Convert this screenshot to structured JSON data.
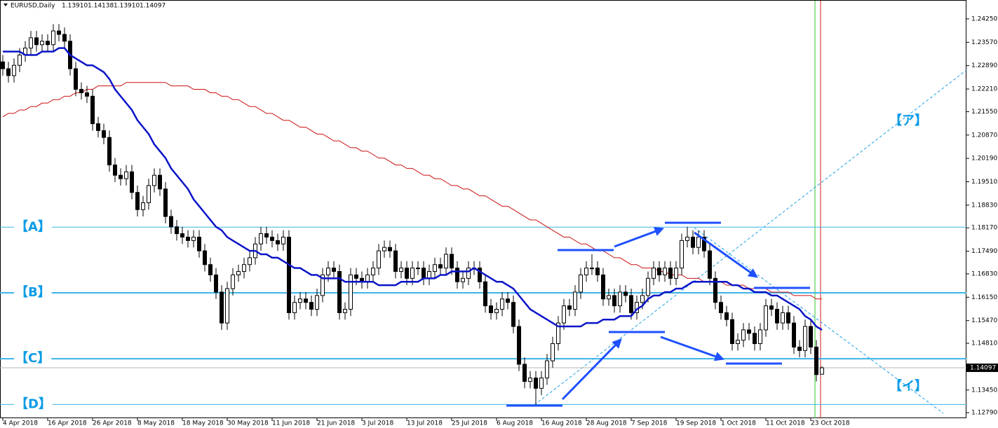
{
  "chart_data": {
    "type": "candlestick",
    "header": {
      "symbol": "EURUSD,Daily",
      "ohlc": [
        "1.13910",
        "1.14138",
        "1.13910",
        "1.14097"
      ]
    },
    "price_label": "1.14097",
    "up_color": "#ffffff",
    "down_color": "#000000",
    "wick_color": "#000000",
    "categories": [
      "4 Apr 2018",
      null,
      null,
      null,
      null,
      null,
      null,
      null,
      "16 Apr 2018",
      null,
      null,
      null,
      null,
      null,
      null,
      null,
      "26 Apr 2018",
      null,
      null,
      null,
      null,
      null,
      null,
      null,
      "8 May 2018",
      null,
      null,
      null,
      null,
      null,
      null,
      null,
      "18 May 2018",
      null,
      null,
      null,
      null,
      null,
      null,
      null,
      "30 May 2018",
      null,
      null,
      null,
      null,
      null,
      null,
      null,
      "11 Jun 2018",
      null,
      null,
      null,
      null,
      null,
      null,
      null,
      "21 Jun 2018",
      null,
      null,
      null,
      null,
      null,
      null,
      null,
      "3 Jul 2018",
      null,
      null,
      null,
      null,
      null,
      null,
      null,
      "13 Jul 2018",
      null,
      null,
      null,
      null,
      null,
      null,
      null,
      "25 Jul 2018",
      null,
      null,
      null,
      null,
      null,
      null,
      null,
      "6 Aug 2018",
      null,
      null,
      null,
      null,
      null,
      null,
      null,
      "16 Aug 2018",
      null,
      null,
      null,
      null,
      null,
      null,
      null,
      "28 Aug 2018",
      null,
      null,
      null,
      null,
      null,
      null,
      null,
      "7 Sep 2018",
      null,
      null,
      null,
      null,
      null,
      null,
      null,
      "19 Sep 2018",
      null,
      null,
      null,
      null,
      null,
      null,
      null,
      "1 Oct 2018",
      null,
      null,
      null,
      null,
      null,
      null,
      null,
      "11 Oct 2018",
      null,
      null,
      null,
      null,
      null,
      null,
      null,
      "23 Oct 2018",
      null,
      null
    ],
    "open": [
      1.23,
      1.228,
      1.226,
      1.229,
      1.232,
      1.234,
      1.237,
      1.235,
      1.236,
      1.235,
      1.239,
      1.238,
      1.236,
      1.228,
      1.222,
      1.221,
      1.22,
      1.212,
      1.21,
      1.208,
      1.2,
      1.197,
      1.196,
      1.198,
      1.192,
      1.187,
      1.189,
      1.194,
      1.197,
      1.193,
      1.185,
      1.182,
      1.18,
      1.179,
      1.178,
      1.179,
      1.175,
      1.171,
      1.168,
      1.163,
      1.154,
      1.164,
      1.168,
      1.169,
      1.171,
      1.173,
      1.177,
      1.18,
      1.179,
      1.178,
      1.177,
      1.179,
      1.157,
      1.16,
      1.161,
      1.16,
      1.158,
      1.162,
      1.168,
      1.17,
      1.169,
      1.157,
      1.158,
      1.168,
      1.167,
      1.166,
      1.168,
      1.17,
      1.175,
      1.176,
      1.175,
      1.169,
      1.17,
      1.167,
      1.17,
      1.17,
      1.167,
      1.169,
      1.171,
      1.17,
      1.174,
      1.17,
      1.166,
      1.167,
      1.17,
      1.17,
      1.166,
      1.159,
      1.157,
      1.158,
      1.161,
      1.16,
      1.153,
      1.142,
      1.137,
      1.138,
      1.135,
      1.138,
      1.143,
      1.148,
      1.154,
      1.159,
      1.158,
      1.163,
      1.168,
      1.17,
      1.17,
      1.168,
      1.161,
      1.162,
      1.159,
      1.163,
      1.162,
      1.157,
      1.16,
      1.162,
      1.167,
      1.17,
      1.168,
      1.17,
      1.167,
      1.17,
      1.178,
      1.179,
      1.176,
      1.179,
      1.175,
      1.167,
      1.16,
      1.157,
      1.155,
      1.148,
      1.149,
      1.152,
      1.151,
      1.148,
      1.152,
      1.159,
      1.158,
      1.154,
      1.157,
      1.154,
      1.147,
      1.146,
      1.153,
      1.147,
      1.1391
    ],
    "high": [
      1.232,
      1.23,
      1.231,
      1.234,
      1.236,
      1.239,
      1.239,
      1.238,
      1.238,
      1.241,
      1.241,
      1.24,
      1.238,
      1.23,
      1.224,
      1.223,
      1.222,
      1.214,
      1.212,
      1.21,
      1.202,
      1.199,
      1.2,
      1.2,
      1.194,
      1.191,
      1.196,
      1.199,
      1.199,
      1.195,
      1.187,
      1.184,
      1.182,
      1.181,
      1.181,
      1.181,
      1.177,
      1.173,
      1.17,
      1.165,
      1.166,
      1.17,
      1.171,
      1.173,
      1.175,
      1.179,
      1.182,
      1.182,
      1.181,
      1.18,
      1.181,
      1.181,
      1.162,
      1.163,
      1.163,
      1.162,
      1.164,
      1.17,
      1.172,
      1.172,
      1.171,
      1.16,
      1.17,
      1.17,
      1.169,
      1.17,
      1.172,
      1.177,
      1.178,
      1.178,
      1.177,
      1.172,
      1.172,
      1.172,
      1.172,
      1.172,
      1.171,
      1.173,
      1.173,
      1.176,
      1.176,
      1.172,
      1.169,
      1.172,
      1.172,
      1.172,
      1.168,
      1.161,
      1.16,
      1.163,
      1.163,
      1.162,
      1.155,
      1.144,
      1.14,
      1.14,
      1.14,
      1.145,
      1.15,
      1.156,
      1.161,
      1.161,
      1.165,
      1.17,
      1.172,
      1.174,
      1.172,
      1.17,
      1.164,
      1.164,
      1.165,
      1.165,
      1.164,
      1.162,
      1.164,
      1.169,
      1.172,
      1.172,
      1.172,
      1.172,
      1.172,
      1.18,
      1.182,
      1.181,
      1.181,
      1.181,
      1.177,
      1.169,
      1.162,
      1.159,
      1.157,
      1.151,
      1.154,
      1.154,
      1.153,
      1.154,
      1.161,
      1.161,
      1.16,
      1.159,
      1.159,
      1.156,
      1.149,
      1.155,
      1.155,
      1.149,
      1.14138
    ],
    "low": [
      1.226,
      1.224,
      1.224,
      1.227,
      1.23,
      1.232,
      1.233,
      1.233,
      1.233,
      1.233,
      1.236,
      1.234,
      1.226,
      1.22,
      1.219,
      1.218,
      1.21,
      1.208,
      1.206,
      1.198,
      1.195,
      1.194,
      1.194,
      1.19,
      1.185,
      1.185,
      1.187,
      1.192,
      1.191,
      1.183,
      1.18,
      1.178,
      1.177,
      1.176,
      1.176,
      1.173,
      1.169,
      1.166,
      1.161,
      1.152,
      1.152,
      1.162,
      1.166,
      1.167,
      1.169,
      1.171,
      1.175,
      1.177,
      1.176,
      1.175,
      1.175,
      1.155,
      1.155,
      1.158,
      1.158,
      1.156,
      1.156,
      1.16,
      1.166,
      1.167,
      1.155,
      1.155,
      1.156,
      1.165,
      1.164,
      1.164,
      1.166,
      1.168,
      1.173,
      1.173,
      1.167,
      1.167,
      1.165,
      1.165,
      1.168,
      1.165,
      1.165,
      1.167,
      1.168,
      1.168,
      1.168,
      1.164,
      1.164,
      1.165,
      1.168,
      1.164,
      1.157,
      1.155,
      1.155,
      1.156,
      1.158,
      1.151,
      1.14,
      1.135,
      1.135,
      1.13,
      1.133,
      1.136,
      1.141,
      1.146,
      1.152,
      1.156,
      1.156,
      1.161,
      1.166,
      1.168,
      1.166,
      1.159,
      1.159,
      1.157,
      1.157,
      1.16,
      1.155,
      1.155,
      1.158,
      1.16,
      1.165,
      1.166,
      1.166,
      1.165,
      1.165,
      1.168,
      1.176,
      1.174,
      1.174,
      1.173,
      1.165,
      1.158,
      1.155,
      1.153,
      1.146,
      1.146,
      1.147,
      1.149,
      1.146,
      1.146,
      1.15,
      1.156,
      1.152,
      1.152,
      1.152,
      1.145,
      1.144,
      1.144,
      1.145,
      1.137,
      1.1391
    ],
    "close": [
      1.228,
      1.226,
      1.229,
      1.232,
      1.234,
      1.237,
      1.235,
      1.236,
      1.235,
      1.239,
      1.238,
      1.236,
      1.228,
      1.222,
      1.221,
      1.22,
      1.212,
      1.21,
      1.208,
      1.2,
      1.197,
      1.196,
      1.198,
      1.192,
      1.187,
      1.189,
      1.194,
      1.197,
      1.193,
      1.185,
      1.182,
      1.18,
      1.179,
      1.178,
      1.179,
      1.175,
      1.171,
      1.168,
      1.163,
      1.154,
      1.164,
      1.168,
      1.169,
      1.171,
      1.173,
      1.177,
      1.18,
      1.179,
      1.178,
      1.177,
      1.179,
      1.157,
      1.16,
      1.161,
      1.16,
      1.158,
      1.162,
      1.168,
      1.17,
      1.169,
      1.157,
      1.158,
      1.168,
      1.167,
      1.166,
      1.168,
      1.17,
      1.175,
      1.176,
      1.175,
      1.169,
      1.17,
      1.167,
      1.17,
      1.17,
      1.167,
      1.169,
      1.171,
      1.17,
      1.174,
      1.17,
      1.166,
      1.167,
      1.17,
      1.17,
      1.166,
      1.159,
      1.157,
      1.158,
      1.161,
      1.16,
      1.153,
      1.142,
      1.137,
      1.138,
      1.135,
      1.138,
      1.143,
      1.148,
      1.154,
      1.159,
      1.158,
      1.163,
      1.168,
      1.17,
      1.17,
      1.168,
      1.161,
      1.162,
      1.159,
      1.163,
      1.162,
      1.157,
      1.16,
      1.162,
      1.167,
      1.17,
      1.168,
      1.17,
      1.167,
      1.17,
      1.178,
      1.179,
      1.176,
      1.179,
      1.175,
      1.167,
      1.16,
      1.157,
      1.155,
      1.148,
      1.149,
      1.152,
      1.151,
      1.148,
      1.152,
      1.159,
      1.158,
      1.154,
      1.157,
      1.154,
      1.147,
      1.146,
      1.153,
      1.147,
      1.139,
      1.14097
    ],
    "lines": [
      {
        "color": "#0a14c8",
        "values": [
          1.233,
          1.233,
          1.233,
          1.233,
          1.232,
          1.232,
          1.232,
          1.233,
          1.233,
          1.233,
          1.234,
          1.234,
          1.232,
          1.231,
          1.23,
          1.229,
          1.229,
          1.228,
          1.227,
          1.225,
          1.222,
          1.22,
          1.218,
          1.216,
          1.213,
          1.211,
          1.209,
          1.206,
          1.204,
          1.202,
          1.199,
          1.197,
          1.195,
          1.193,
          1.19,
          1.188,
          1.186,
          1.184,
          1.182,
          1.181,
          1.179,
          1.178,
          1.177,
          1.176,
          1.175,
          1.175,
          1.174,
          1.174,
          1.173,
          1.173,
          1.172,
          1.171,
          1.17,
          1.17,
          1.169,
          1.168,
          1.168,
          1.167,
          1.167,
          1.167,
          1.167,
          1.166,
          1.166,
          1.166,
          1.166,
          1.166,
          1.166,
          1.165,
          1.165,
          1.165,
          1.165,
          1.166,
          1.166,
          1.166,
          1.166,
          1.167,
          1.167,
          1.167,
          1.168,
          1.168,
          1.169,
          1.169,
          1.169,
          1.169,
          1.17,
          1.169,
          1.168,
          1.167,
          1.166,
          1.166,
          1.165,
          1.164,
          1.162,
          1.16,
          1.158,
          1.157,
          1.156,
          1.155,
          1.154,
          1.153,
          1.153,
          1.153,
          1.153,
          1.153,
          1.154,
          1.154,
          1.154,
          1.155,
          1.155,
          1.155,
          1.156,
          1.156,
          1.156,
          1.158,
          1.159,
          1.161,
          1.162,
          1.162,
          1.163,
          1.163,
          1.164,
          1.164,
          1.165,
          1.166,
          1.166,
          1.166,
          1.166,
          1.166,
          1.166,
          1.166,
          1.165,
          1.165,
          1.164,
          1.164,
          1.163,
          1.163,
          1.163,
          1.162,
          1.162,
          1.161,
          1.16,
          1.159,
          1.158,
          1.156,
          1.155,
          1.153,
          1.152
        ]
      },
      {
        "color": "#cc1010",
        "values": [
          1.214,
          1.215,
          1.215,
          1.216,
          1.216,
          1.217,
          1.217,
          1.218,
          1.218,
          1.219,
          1.219,
          1.22,
          1.22,
          1.221,
          1.221,
          1.222,
          1.222,
          1.223,
          1.223,
          1.223,
          1.223,
          1.223,
          1.224,
          1.224,
          1.224,
          1.224,
          1.224,
          1.224,
          1.224,
          1.224,
          1.223,
          1.223,
          1.223,
          1.223,
          1.222,
          1.222,
          1.222,
          1.221,
          1.221,
          1.22,
          1.22,
          1.219,
          1.219,
          1.218,
          1.217,
          1.217,
          1.216,
          1.215,
          1.215,
          1.214,
          1.213,
          1.213,
          1.212,
          1.211,
          1.211,
          1.21,
          1.209,
          1.209,
          1.208,
          1.207,
          1.207,
          1.206,
          1.205,
          1.205,
          1.204,
          1.204,
          1.203,
          1.202,
          1.202,
          1.201,
          1.2,
          1.2,
          1.199,
          1.199,
          1.198,
          1.197,
          1.197,
          1.196,
          1.196,
          1.195,
          1.194,
          1.194,
          1.193,
          1.193,
          1.192,
          1.191,
          1.191,
          1.19,
          1.189,
          1.188,
          1.188,
          1.187,
          1.186,
          1.185,
          1.184,
          1.184,
          1.183,
          1.182,
          1.181,
          1.18,
          1.179,
          1.179,
          1.178,
          1.177,
          1.177,
          1.176,
          1.175,
          1.175,
          1.174,
          1.173,
          1.173,
          1.172,
          1.171,
          1.171,
          1.17,
          1.17,
          1.17,
          1.169,
          1.169,
          1.168,
          1.168,
          1.168,
          1.167,
          1.167,
          1.167,
          1.166,
          1.166,
          1.166,
          1.166,
          1.165,
          1.165,
          1.165,
          1.165,
          1.164,
          1.164,
          1.164,
          1.164,
          1.163,
          1.163,
          1.163,
          1.163,
          1.162,
          1.162,
          1.162,
          1.162,
          1.161,
          1.161
        ]
      }
    ],
    "levels": [
      {
        "label": "【A】",
        "value": 1.1819,
        "color": "#3cb4e6",
        "width": 1
      },
      {
        "label": "【B】",
        "value": 1.1628,
        "color": "#3cb4e6",
        "width": 2
      },
      {
        "label": "【C】",
        "value": 1.1436,
        "color": "#3cb4e6",
        "width": 2
      },
      {
        "label": "【D】",
        "value": 1.1303,
        "color": "#3cb4e6",
        "width": 1
      }
    ],
    "annotations": [
      "【ア】",
      "【イ】"
    ],
    "ylim": [
      1.1263,
      1.248
    ],
    "yticks": [
      {
        "value": 1.2425,
        "label": "1.24250"
      },
      {
        "value": 1.2357,
        "label": "1.23570"
      },
      {
        "value": 1.2289,
        "label": "1.22890"
      },
      {
        "value": 1.2221,
        "label": "1.22210"
      },
      {
        "value": 1.2155,
        "label": "1.21550"
      },
      {
        "value": 1.2087,
        "label": "1.20870"
      },
      {
        "value": 1.2019,
        "label": "1.20190"
      },
      {
        "value": 1.1951,
        "label": "1.19510"
      },
      {
        "value": 1.1883,
        "label": "1.18830"
      },
      {
        "value": 1.1817,
        "label": "1.18170"
      },
      {
        "value": 1.1749,
        "label": "1.17490"
      },
      {
        "value": 1.1683,
        "label": "1.16830"
      },
      {
        "value": 1.1615,
        "label": "1.16150"
      },
      {
        "value": 1.1547,
        "label": "1.15470"
      },
      {
        "value": 1.1481,
        "label": "1.14810"
      },
      {
        "value": 1.1413,
        "label": "1.14130"
      },
      {
        "value": 1.1345,
        "label": "1.13450"
      },
      {
        "value": 1.1279,
        "label": "1.12790"
      }
    ]
  }
}
